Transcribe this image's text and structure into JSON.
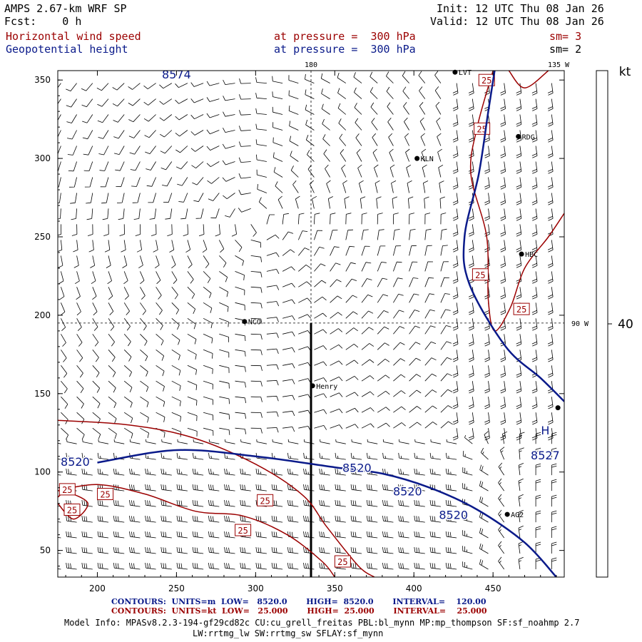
{
  "header": {
    "model": "AMPS 2.67-km WRF SP",
    "fcst": "Fcst:    0 h",
    "init": "Init: 12 UTC Thu 08 Jan 26",
    "valid": "Valid: 12 UTC Thu 08 Jan 26",
    "field1_name": "Horizontal wind speed",
    "field1_level": "at pressure =  300 hPa",
    "field1_sm": "sm= 3",
    "field2_name": "Geopotential height",
    "field2_level": "at pressure =  300 hPa",
    "field2_sm": "sm= 2"
  },
  "colors": {
    "wind_contour": "#9b0000",
    "height_contour": "#0a1a8a",
    "barbs": "#000000"
  },
  "footer": {
    "height_line": "CONTOURS:  UNITS=m  LOW=   8520.0       HIGH=  8520.0       INTERVAL=    120.00",
    "wind_line": "CONTOURS:  UNITS=kt  LOW=   25.000       HIGH=  25.000       INTERVAL=    25.000",
    "model_info": "Model Info: MPASv8.2.3-194-gf29cd82c CU:cu_grell_freitas PBL:bl_mynn MP:mp_thompson SF:sf_noahmp 2.7",
    "model_info2": "LW:rrtmg_lw SW:rrtmg_sw SFLAY:sf_mynn"
  },
  "legend": {
    "unit": "kt",
    "value": "40"
  },
  "chart_data": {
    "type": "contour",
    "xlim": [
      175,
      495
    ],
    "ylim": [
      33,
      356
    ],
    "x_ticks": [
      "200",
      "250",
      "300",
      "350",
      "400",
      "450"
    ],
    "y_ticks": [
      "50",
      "100",
      "150",
      "200",
      "250",
      "300",
      "350"
    ],
    "meridians": [
      {
        "label": "180",
        "x": 335
      },
      {
        "label": "135 W",
        "x": 495
      }
    ],
    "parallels": [
      {
        "label": "90 W",
        "y": 195
      }
    ],
    "cross_section": {
      "x": 335,
      "y_from": 33,
      "y_to": 195
    },
    "stations": [
      {
        "name": "LVT",
        "x": 426,
        "y": 355
      },
      {
        "name": "RDG",
        "x": 466,
        "y": 314
      },
      {
        "name": "KLN",
        "x": 402,
        "y": 300
      },
      {
        "name": "HBC",
        "x": 468,
        "y": 239
      },
      {
        "name": "NCO",
        "x": 293,
        "y": 196
      },
      {
        "name": "Henry",
        "x": 336,
        "y": 155
      },
      {
        "name": "",
        "x": 491,
        "y": 141
      },
      {
        "name": "AG2",
        "x": 459,
        "y": 73
      }
    ],
    "height_contours": {
      "units": "m",
      "series": [
        {
          "label": "8520",
          "points": [
            [
              200,
              106
            ],
            [
              250,
              114
            ],
            [
              300,
              110
            ],
            [
              350,
              103
            ],
            [
              380,
              99
            ],
            [
              410,
              90
            ],
            [
              440,
              76
            ],
            [
              470,
              55
            ],
            [
              490,
              33
            ]
          ]
        },
        {
          "label": "",
          "points": [
            [
              451,
              356
            ],
            [
              447,
              330
            ],
            [
              441,
              290
            ],
            [
              432,
              250
            ],
            [
              435,
              220
            ],
            [
              458,
              180
            ],
            [
              480,
              160
            ],
            [
              495,
              145
            ]
          ]
        }
      ],
      "labels": [
        {
          "text": "8574",
          "x": 250,
          "y": 351
        },
        {
          "text": "8520",
          "x": 186,
          "y": 104
        },
        {
          "text": "8520",
          "x": 364,
          "y": 100
        },
        {
          "text": "8520",
          "x": 396,
          "y": 85
        },
        {
          "text": "8520",
          "x": 425,
          "y": 70
        },
        {
          "text": "H",
          "x": 483,
          "y": 124
        },
        {
          "text": "8527",
          "x": 483,
          "y": 108
        }
      ]
    },
    "wind_contours": {
      "units": "kt",
      "series": [
        {
          "points": [
            [
              175,
              133
            ],
            [
              220,
              130
            ],
            [
              260,
              122
            ],
            [
              300,
              105
            ],
            [
              330,
              85
            ],
            [
              345,
              65
            ],
            [
              365,
              40
            ],
            [
              375,
              33
            ]
          ]
        },
        {
          "points": [
            [
              175,
              88
            ],
            [
              200,
              92
            ],
            [
              230,
              86
            ],
            [
              262,
              75
            ],
            [
              292,
              72
            ],
            [
              320,
              60
            ],
            [
              342,
              43
            ],
            [
              350,
              33
            ]
          ]
        },
        {
          "points": [
            [
              175,
              80
            ],
            [
              185,
              70
            ],
            [
              194,
              80
            ],
            [
              181,
              87
            ],
            [
              175,
              84
            ]
          ]
        },
        {
          "points": [
            [
              450,
              356
            ],
            [
              440,
              320
            ],
            [
              436,
              290
            ],
            [
              446,
              250
            ],
            [
              447,
              210
            ],
            [
              451,
              190
            ],
            [
              461,
              205
            ],
            [
              470,
              230
            ],
            [
              485,
              250
            ],
            [
              495,
              265
            ]
          ]
        },
        {
          "points": [
            [
              460,
              356
            ],
            [
              470,
              345
            ],
            [
              485,
              356
            ]
          ]
        }
      ],
      "labels": [
        {
          "text": "25",
          "x": 181,
          "y": 89
        },
        {
          "text": "25",
          "x": 205,
          "y": 86
        },
        {
          "text": "25",
          "x": 184,
          "y": 76
        },
        {
          "text": "25",
          "x": 306,
          "y": 82
        },
        {
          "text": "25",
          "x": 292,
          "y": 63
        },
        {
          "text": "25",
          "x": 355,
          "y": 43
        },
        {
          "text": "25",
          "x": 446,
          "y": 350
        },
        {
          "text": "25",
          "x": 443,
          "y": 319
        },
        {
          "text": "25",
          "x": 442,
          "y": 226
        },
        {
          "text": "25",
          "x": 468,
          "y": 204
        }
      ]
    },
    "wind_barbs": {
      "grid_x": [
        177,
        495,
        10
      ],
      "grid_y": [
        38,
        355,
        10
      ],
      "flows": [
        {
          "region": "upper-left",
          "direction": "anticyclonic"
        },
        {
          "region": "lower-left",
          "direction": "westerly",
          "speed_kt": 30
        },
        {
          "region": "right",
          "direction": "southerly",
          "speed_kt": 20
        }
      ]
    }
  }
}
